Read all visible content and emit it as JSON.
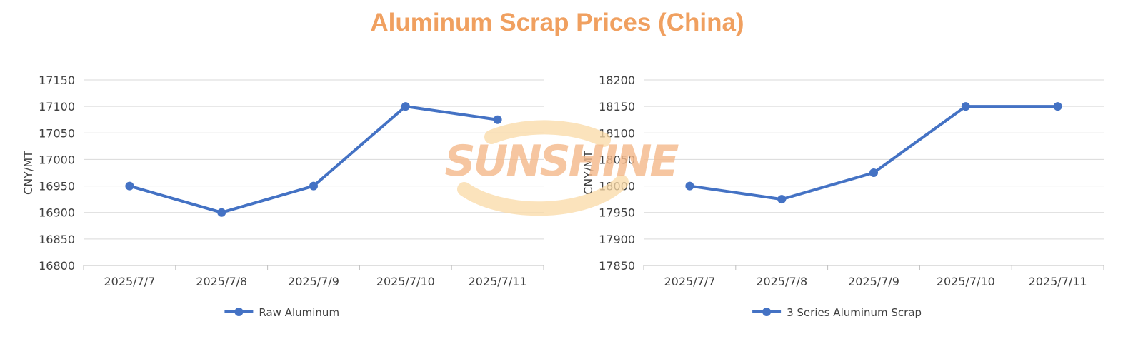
{
  "page": {
    "title": "Aluminum Scrap Prices (China)",
    "title_color": "#F0A060",
    "watermark": "SUNSHINE",
    "watermark_color": "#F5B98A",
    "watermark_arc_color": "#F9D9A6"
  },
  "chart_data": [
    {
      "type": "line",
      "ylabel": "CNY/MT",
      "categories": [
        "2025/7/7",
        "2025/7/8",
        "2025/7/9",
        "2025/7/10",
        "2025/7/11"
      ],
      "ylim": [
        16800,
        17150
      ],
      "yticks": [
        "16800",
        "16850",
        "16900",
        "16950",
        "17000",
        "17050",
        "17100",
        "17150"
      ],
      "grid": true,
      "legend_position": "bottom",
      "series": [
        {
          "name": "Raw Aluminum",
          "values": [
            16950,
            16900,
            16950,
            17100,
            17075
          ],
          "color": "#4472C4"
        }
      ]
    },
    {
      "type": "line",
      "ylabel": "CNY/MT",
      "categories": [
        "2025/7/7",
        "2025/7/8",
        "2025/7/9",
        "2025/7/10",
        "2025/7/11"
      ],
      "ylim": [
        17850,
        18200
      ],
      "yticks": [
        "17850",
        "17900",
        "17950",
        "18000",
        "18050",
        "18100",
        "18150",
        "18200"
      ],
      "grid": true,
      "legend_position": "bottom",
      "series": [
        {
          "name": "3 Series Aluminum Scrap",
          "values": [
            18000,
            17975,
            18025,
            18150,
            18150
          ],
          "color": "#4472C4"
        }
      ]
    }
  ]
}
